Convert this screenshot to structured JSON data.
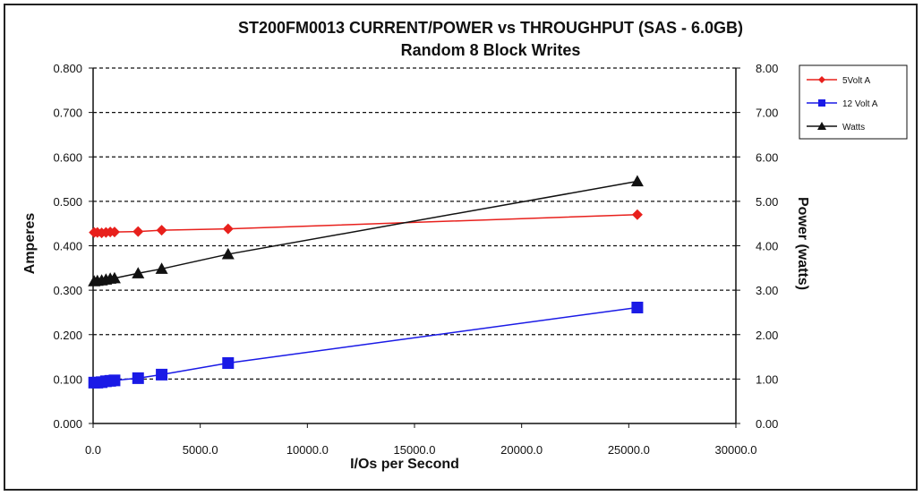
{
  "chart_data": {
    "type": "line",
    "title": "ST200FM0013 CURRENT/POWER vs THROUGHPUT (SAS  - 6.0GB)",
    "subtitle": "Random 8 Block Writes",
    "xlabel": "I/Os per Second",
    "ylabel": "Amperes",
    "y2label": "Power (watts)",
    "xlim": [
      0,
      30000
    ],
    "ylim": [
      0,
      0.8
    ],
    "y2lim": [
      0,
      8
    ],
    "x_ticks": [
      "0.0",
      "5000.0",
      "10000.0",
      "15000.0",
      "20000.0",
      "25000.0",
      "30000.0"
    ],
    "y_ticks": [
      "0.000",
      "0.100",
      "0.200",
      "0.300",
      "0.400",
      "0.500",
      "0.600",
      "0.700",
      "0.800"
    ],
    "y2_ticks": [
      "0.00",
      "1.00",
      "2.00",
      "3.00",
      "4.00",
      "5.00",
      "6.00",
      "7.00",
      "8.00"
    ],
    "grid": "horizontal dashed",
    "legend_position": "top-right",
    "series": [
      {
        "name": "5Volt A",
        "axis": "left",
        "color": "#e8201c",
        "marker": "diamond",
        "x": [
          50,
          200,
          400,
          600,
          800,
          1000,
          2100,
          3200,
          6300,
          25400
        ],
        "values": [
          0.43,
          0.43,
          0.429,
          0.43,
          0.431,
          0.431,
          0.432,
          0.435,
          0.438,
          0.47
        ]
      },
      {
        "name": "12 Volt A",
        "axis": "left",
        "color": "#1a1ae6",
        "marker": "square",
        "x": [
          50,
          200,
          400,
          600,
          800,
          1000,
          2100,
          3200,
          6300,
          25400
        ],
        "values": [
          0.092,
          0.092,
          0.093,
          0.095,
          0.096,
          0.097,
          0.102,
          0.11,
          0.136,
          0.261
        ]
      },
      {
        "name": "Watts",
        "axis": "right",
        "color": "#111111",
        "marker": "triangle",
        "x": [
          50,
          200,
          400,
          600,
          800,
          1000,
          2100,
          3200,
          6300,
          25400
        ],
        "values": [
          3.2,
          3.21,
          3.22,
          3.24,
          3.26,
          3.27,
          3.38,
          3.48,
          3.81,
          5.45
        ]
      }
    ]
  }
}
